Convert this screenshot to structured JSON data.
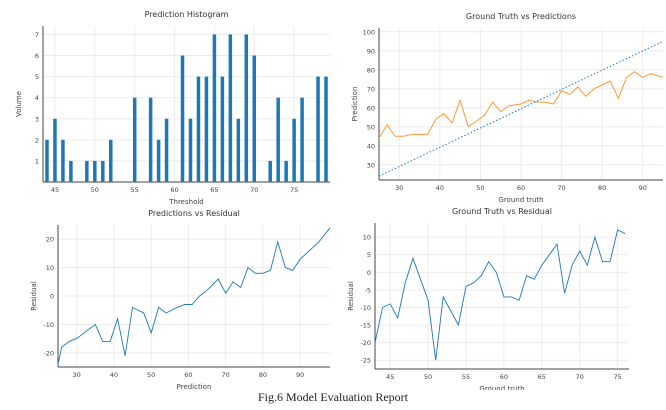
{
  "caption": "Fig.6 Model Evaluation Report",
  "chart_data": [
    {
      "type": "bar",
      "title": "Prediction Histogram",
      "xlabel": "Threshold",
      "ylabel": "Volume",
      "color": "#1f77b4",
      "xlim": [
        43.5,
        79.5
      ],
      "ylim": [
        0,
        7.4
      ],
      "xticks": [
        45,
        50,
        55,
        60,
        65,
        70,
        75
      ],
      "yticks": [
        1,
        2,
        3,
        4,
        5,
        6,
        7
      ],
      "x": [
        44,
        45,
        46,
        47,
        49,
        50,
        51,
        52,
        55,
        57,
        58,
        59,
        61,
        62,
        63,
        64,
        65,
        66,
        67,
        68,
        69,
        70,
        72,
        73,
        74,
        75,
        76,
        78,
        79
      ],
      "values": [
        2,
        3,
        2,
        1,
        1,
        1,
        1,
        2,
        4,
        4,
        2,
        3,
        6,
        3,
        5,
        5,
        7,
        5,
        7,
        3,
        7,
        6,
        1,
        4,
        1,
        3,
        4,
        5,
        5
      ]
    },
    {
      "type": "line",
      "title": "Ground Truth vs Predictions",
      "xlabel": "Ground truth",
      "ylabel": "Prediction",
      "xlim": [
        25,
        95
      ],
      "ylim": [
        22,
        102
      ],
      "xticks": [
        30,
        40,
        50,
        60,
        70,
        80,
        90
      ],
      "yticks": [
        30,
        40,
        50,
        60,
        70,
        80,
        90,
        100
      ],
      "series": [
        {
          "color": "#ff9933",
          "x": [
            25,
            27,
            29,
            31,
            33,
            35,
            37,
            39,
            41,
            43,
            45,
            47,
            49,
            51,
            53,
            55,
            57,
            60,
            62,
            64,
            66,
            68,
            70,
            72,
            74,
            76,
            78,
            80,
            82,
            84,
            86,
            88,
            90,
            92,
            95
          ],
          "y": [
            44,
            51,
            45,
            45,
            46,
            46,
            46,
            54,
            57,
            52,
            64,
            50,
            53,
            56,
            63,
            58,
            61,
            62,
            64,
            63,
            63,
            62,
            69,
            67,
            71,
            66,
            70,
            72,
            74,
            65,
            76,
            79,
            76,
            78,
            76
          ]
        },
        {
          "style": "dotted",
          "color": "#1f77b4",
          "x": [
            25,
            95
          ],
          "y": [
            24,
            95
          ]
        }
      ]
    },
    {
      "type": "line",
      "title": "Predictions vs Residual",
      "xlabel": "Prediction",
      "ylabel": "Residual",
      "color": "#1f77b4",
      "xlim": [
        25,
        98
      ],
      "ylim": [
        -25,
        25
      ],
      "xticks": [
        30,
        40,
        50,
        60,
        70,
        80,
        90
      ],
      "yticks": [
        -20,
        -10,
        0,
        10,
        20
      ],
      "x": [
        25,
        26,
        28,
        30,
        35,
        37,
        39,
        41,
        43,
        45,
        48,
        50,
        52,
        54,
        57,
        59,
        61,
        63,
        65,
        68,
        70,
        72,
        74,
        76,
        78,
        80,
        82,
        84,
        86,
        88,
        90,
        95,
        98
      ],
      "y": [
        -24,
        -18,
        -16,
        -15,
        -10,
        -16,
        -16,
        -8,
        -21,
        -4,
        -6,
        -13,
        -4,
        -6,
        -4,
        -3,
        -3,
        0,
        2,
        6,
        1,
        5,
        3,
        10,
        8,
        8,
        9,
        19,
        10,
        9,
        13,
        19,
        24
      ]
    },
    {
      "type": "line",
      "title": "Ground Truth vs Residual",
      "xlabel": "Ground truth",
      "ylabel": "Residual",
      "color": "#1f77b4",
      "xlim": [
        43,
        76.5
      ],
      "ylim": [
        -27.5,
        14
      ],
      "xticks": [
        45,
        50,
        55,
        60,
        65,
        70,
        75
      ],
      "yticks": [
        -25,
        -20,
        -15,
        -10,
        -5,
        0,
        5,
        10
      ],
      "x": [
        43,
        44,
        45,
        46,
        47,
        48,
        49,
        50,
        51,
        52,
        54,
        55,
        56,
        57,
        58,
        59,
        60,
        61,
        62,
        63,
        64,
        65,
        66,
        67,
        68,
        69,
        70,
        71,
        72,
        73,
        74,
        75,
        76
      ],
      "y": [
        -20,
        -10,
        -9,
        -13,
        -3,
        4,
        -2,
        -8,
        -25,
        -7,
        -15,
        -4,
        -3,
        -1,
        3,
        0,
        -7,
        -7,
        -8,
        -1,
        -2,
        2,
        5,
        8,
        -6,
        2,
        6,
        2,
        10,
        3,
        3,
        12,
        11
      ]
    }
  ]
}
